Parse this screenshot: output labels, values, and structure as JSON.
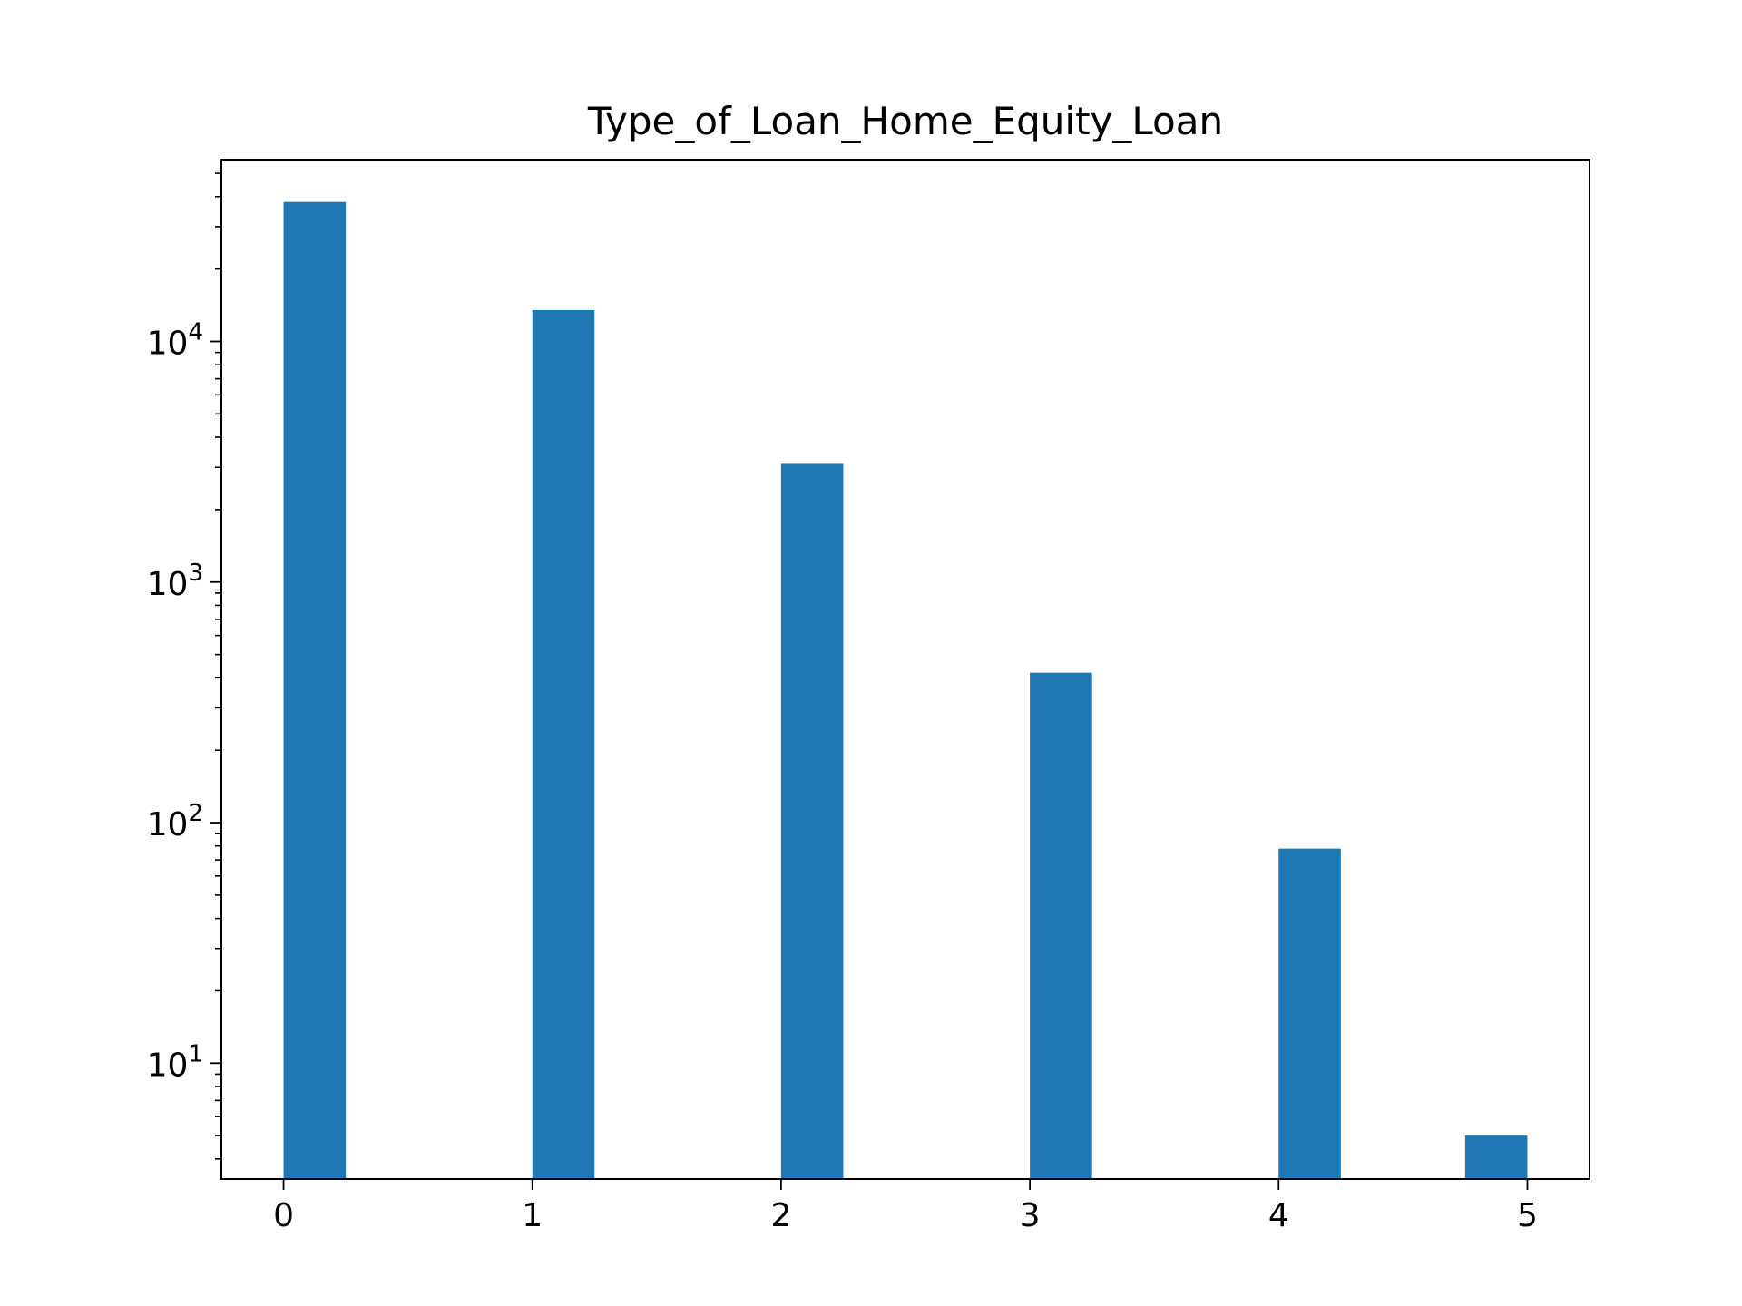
{
  "chart_data": {
    "type": "bar",
    "title": "Type_of_Loan_Home_Equity_Loan",
    "xlabel": "",
    "ylabel": "",
    "yscale": "log",
    "xlim": [
      -0.25,
      5.25
    ],
    "ylim": [
      3.3,
      57000
    ],
    "grid": false,
    "bar_color": "#1f77b4",
    "x_ticks": [
      {
        "value": 0,
        "label": "0"
      },
      {
        "value": 1,
        "label": "1"
      },
      {
        "value": 2,
        "label": "2"
      },
      {
        "value": 3,
        "label": "3"
      },
      {
        "value": 4,
        "label": "4"
      },
      {
        "value": 5,
        "label": "5"
      }
    ],
    "y_ticks": [
      {
        "value": 10,
        "base": "10",
        "exp": "1"
      },
      {
        "value": 100,
        "base": "10",
        "exp": "2"
      },
      {
        "value": 1000,
        "base": "10",
        "exp": "3"
      },
      {
        "value": 10000,
        "base": "10",
        "exp": "4"
      }
    ],
    "bars": [
      {
        "x0": 0.0,
        "x1": 0.25,
        "value": 38000
      },
      {
        "x0": 1.0,
        "x1": 1.25,
        "value": 13500
      },
      {
        "x0": 2.0,
        "x1": 2.25,
        "value": 3100
      },
      {
        "x0": 3.0,
        "x1": 3.25,
        "value": 420
      },
      {
        "x0": 4.0,
        "x1": 4.25,
        "value": 78
      },
      {
        "x0": 4.75,
        "x1": 5.0,
        "value": 5
      }
    ]
  }
}
